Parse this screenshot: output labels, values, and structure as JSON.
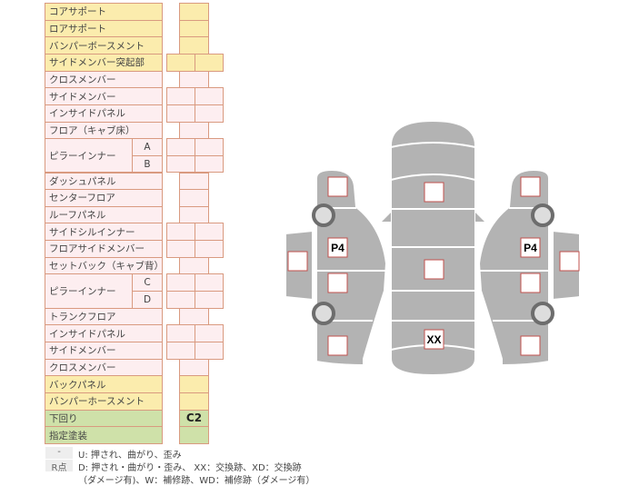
{
  "rows": [
    {
      "label": "コアサポート",
      "color": "y",
      "cells": 1
    },
    {
      "label": "ロアサポート",
      "color": "y",
      "cells": 1
    },
    {
      "label": "バンパーボースメント",
      "color": "y",
      "cells": 1
    },
    {
      "label": "サイドメンバー突起部",
      "color": "y",
      "cells": 2
    },
    {
      "label": "クロスメンバー",
      "color": "p",
      "cells": 1
    },
    {
      "label": "サイドメンバー",
      "color": "p",
      "cells": 2
    },
    {
      "label": "インサイドパネル",
      "color": "p",
      "cells": 2
    },
    {
      "label": "フロア（キャブ床）",
      "color": "p",
      "cells": 1
    },
    {
      "label": "ピラーインナー",
      "sub": "A",
      "color": "p",
      "cells": 2,
      "group": "start"
    },
    {
      "label": "",
      "sub": "B",
      "color": "p",
      "cells": 2,
      "group": "cont"
    },
    {
      "label": "ダッシュパネル",
      "color": "p",
      "cells": 1
    },
    {
      "label": "センターフロア",
      "color": "p",
      "cells": 1
    },
    {
      "label": "ルーフパネル",
      "color": "p",
      "cells": 1
    },
    {
      "label": "サイドシルインナー",
      "color": "p",
      "cells": 2
    },
    {
      "label": "フロアサイドメンバー",
      "color": "p",
      "cells": 2
    },
    {
      "label": "セットバック（キャブ背）",
      "color": "p",
      "cells": 1
    },
    {
      "label": "ピラーインナー",
      "sub": "C",
      "color": "p",
      "cells": 2,
      "group": "start"
    },
    {
      "label": "",
      "sub": "D",
      "color": "p",
      "cells": 2,
      "group": "cont"
    },
    {
      "label": "トランクフロア",
      "color": "p",
      "cells": 1
    },
    {
      "label": "インサイドパネル",
      "color": "p",
      "cells": 2
    },
    {
      "label": "サイドメンバー",
      "color": "p",
      "cells": 2
    },
    {
      "label": "クロスメンバー",
      "color": "p",
      "cells": 1
    },
    {
      "label": "バックパネル",
      "color": "y",
      "cells": 1
    },
    {
      "label": "バンパーホースメント",
      "color": "y",
      "cells": 1
    },
    {
      "label": "下回り",
      "color": "g",
      "cells": 1,
      "value": "C2"
    },
    {
      "label": "指定塗装",
      "color": "g",
      "cells": 1
    }
  ],
  "legend": [
    {
      "key": "-",
      "text": "U: 押され、曲がり、歪み"
    },
    {
      "key": "R点",
      "text": "D: 押され・曲がり・歪み、 XX：交換跡、XD：交換跡"
    },
    {
      "key": "",
      "text": "（ダメージ有)、W：補修跡、WD：補修跡（ダメージ有）"
    }
  ],
  "diagram": {
    "body_color": "#b3b3b3",
    "marker_border": "#c0504d",
    "markers": [
      {
        "id": "center-front",
        "label": ""
      },
      {
        "id": "center-roof",
        "label": ""
      },
      {
        "id": "center-rear",
        "label": "XX"
      },
      {
        "id": "left-front-fender",
        "label": ""
      },
      {
        "id": "left-front-door",
        "label": "P4"
      },
      {
        "id": "left-rear-door",
        "label": ""
      },
      {
        "id": "left-rear-quarter",
        "label": ""
      },
      {
        "id": "left-mirror-door",
        "label": ""
      },
      {
        "id": "right-front-fender",
        "label": ""
      },
      {
        "id": "right-front-door",
        "label": "P4"
      },
      {
        "id": "right-rear-door",
        "label": ""
      },
      {
        "id": "right-rear-quarter",
        "label": ""
      },
      {
        "id": "right-mirror-door",
        "label": ""
      }
    ]
  }
}
